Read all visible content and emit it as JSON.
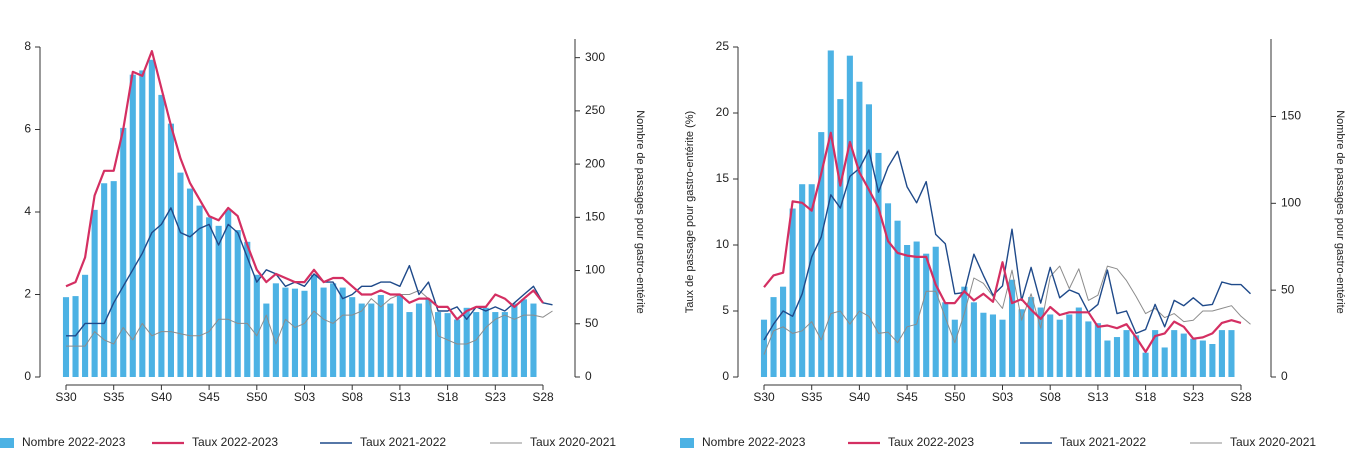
{
  "chart_data": [
    {
      "type": "combo",
      "y_label": null,
      "y2_label": "Nombre de passages pour gastro-entérite",
      "legend": "bottom",
      "grid": false,
      "categories": [
        "S30",
        null,
        null,
        null,
        null,
        "S35",
        null,
        null,
        null,
        null,
        "S40",
        null,
        null,
        null,
        null,
        "S45",
        null,
        null,
        null,
        null,
        "S50",
        null,
        null,
        null,
        null,
        "S03",
        null,
        null,
        null,
        null,
        "S08",
        null,
        null,
        null,
        null,
        "S13",
        null,
        null,
        null,
        null,
        "S18",
        null,
        null,
        null,
        null,
        "S23",
        null,
        null,
        null,
        null,
        "S28",
        null
      ],
      "ylim": [
        0,
        8
      ],
      "yticks": [
        0,
        2,
        4,
        6,
        8
      ],
      "y2lim": [
        0,
        310
      ],
      "y2ticks": [
        0,
        50,
        100,
        150,
        200,
        250,
        300
      ],
      "series": [
        {
          "name": "Nombre 2022-2023",
          "type": "bar",
          "axis": "y2",
          "color": "#4cb2e4",
          "values": [
            75,
            76,
            96,
            157,
            182,
            184,
            234,
            284,
            288,
            298,
            265,
            238,
            192,
            177,
            161,
            150,
            142,
            157,
            138,
            127,
            96,
            69,
            88,
            84,
            83,
            81,
            96,
            84,
            88,
            84,
            75,
            69,
            69,
            77,
            69,
            77,
            61,
            69,
            73,
            61,
            60,
            54,
            65,
            61,
            65,
            61,
            61,
            69,
            73,
            69,
            null,
            null
          ]
        },
        {
          "name": "Taux 2022-2023",
          "type": "line",
          "color": "#d42f62",
          "width": 2.2,
          "values": [
            2.2,
            2.3,
            2.9,
            4.4,
            5.0,
            5.0,
            6.0,
            7.4,
            7.3,
            7.9,
            7.0,
            6.1,
            5.3,
            4.7,
            4.3,
            3.9,
            3.8,
            4.1,
            3.9,
            3.2,
            2.6,
            2.3,
            2.5,
            2.4,
            2.3,
            2.3,
            2.6,
            2.3,
            2.4,
            2.4,
            2.2,
            2.0,
            2.0,
            2.1,
            2.0,
            2.0,
            1.8,
            1.9,
            1.9,
            1.7,
            1.7,
            1.4,
            1.6,
            1.7,
            1.7,
            2.0,
            1.9,
            1.7,
            1.9,
            2.1,
            1.8,
            null
          ]
        },
        {
          "name": "Taux 2021-2022",
          "type": "line",
          "color": "#1f4a8a",
          "width": 1.4,
          "values": [
            1.0,
            1.0,
            1.3,
            1.3,
            1.3,
            1.8,
            2.2,
            2.6,
            3.0,
            3.5,
            3.7,
            4.1,
            3.5,
            3.4,
            3.6,
            3.7,
            3.2,
            3.7,
            3.5,
            2.9,
            2.3,
            2.6,
            2.5,
            2.2,
            2.3,
            2.2,
            2.5,
            2.3,
            2.3,
            1.9,
            2.0,
            2.2,
            2.2,
            2.3,
            2.3,
            2.2,
            2.7,
            2.0,
            2.3,
            1.6,
            1.6,
            1.7,
            1.4,
            1.7,
            1.6,
            1.7,
            1.6,
            1.8,
            2.0,
            2.2,
            1.8,
            1.75
          ]
        },
        {
          "name": "Taux 2020-2021",
          "type": "line",
          "color": "#8c8c8c",
          "width": 1,
          "values": [
            0.75,
            0.75,
            0.75,
            1.1,
            0.9,
            0.8,
            1.2,
            0.9,
            1.3,
            1.0,
            1.1,
            1.1,
            1.05,
            1.0,
            1.0,
            1.1,
            1.4,
            1.4,
            1.3,
            1.3,
            1.0,
            1.5,
            0.8,
            1.4,
            1.2,
            1.3,
            1.6,
            1.4,
            1.3,
            1.5,
            1.5,
            1.6,
            1.9,
            1.7,
            1.9,
            2.0,
            2.0,
            2.1,
            1.9,
            1.0,
            0.9,
            0.8,
            0.8,
            0.9,
            1.2,
            1.4,
            1.5,
            1.4,
            1.5,
            1.5,
            1.45,
            1.6
          ]
        }
      ]
    },
    {
      "type": "combo",
      "y_label": "Taux de passage pour gastro-entérite (%)",
      "y2_label": "Nombre de passages pour gastro-entérite",
      "legend": "bottom",
      "grid": false,
      "categories": [
        "S30",
        null,
        null,
        null,
        null,
        "S35",
        null,
        null,
        null,
        null,
        "S40",
        null,
        null,
        null,
        null,
        "S45",
        null,
        null,
        null,
        null,
        "S50",
        null,
        null,
        null,
        null,
        "S03",
        null,
        null,
        null,
        null,
        "S08",
        null,
        null,
        null,
        null,
        "S13",
        null,
        null,
        null,
        null,
        "S18",
        null,
        null,
        null,
        null,
        "S23",
        null,
        null,
        null,
        null,
        "S28",
        null
      ],
      "ylim": [
        0,
        25
      ],
      "yticks": [
        0,
        5,
        10,
        15,
        20,
        25
      ],
      "y2lim": [
        0,
        190
      ],
      "y2ticks": [
        0,
        50,
        100,
        150
      ],
      "series": [
        {
          "name": "Nombre 2022-2023",
          "type": "bar",
          "axis": "y2",
          "color": "#4cb2e4",
          "values": [
            33,
            46,
            52,
            97,
            111,
            111,
            141,
            188,
            160,
            185,
            170,
            157,
            129,
            100,
            90,
            76,
            78,
            71,
            75,
            43,
            33,
            52,
            43,
            37,
            36,
            33,
            56,
            39,
            46,
            40,
            36,
            33,
            36,
            40,
            32,
            31,
            21,
            23,
            27,
            24,
            14,
            27,
            17,
            27,
            25,
            22,
            21,
            19,
            27,
            27,
            null,
            null
          ]
        },
        {
          "name": "Taux 2022-2023",
          "type": "line",
          "color": "#d42f62",
          "width": 2.2,
          "values": [
            6.8,
            7.7,
            7.9,
            13.3,
            13.2,
            12.6,
            15.4,
            18.5,
            14.5,
            17.8,
            15.5,
            14.2,
            12.8,
            10.3,
            9.4,
            9.2,
            9.1,
            9.1,
            7.0,
            5.6,
            5.6,
            6.5,
            5.8,
            6.3,
            5.7,
            8.7,
            5.6,
            5.9,
            5.1,
            4.4,
            5.3,
            4.7,
            4.9,
            4.9,
            4.9,
            3.8,
            3.9,
            3.7,
            4.0,
            3.0,
            1.9,
            3.1,
            3.3,
            4.2,
            3.8,
            2.9,
            3.0,
            3.3,
            4.1,
            4.3,
            4.1,
            null
          ]
        },
        {
          "name": "Taux 2021-2022",
          "type": "line",
          "color": "#1f4a8a",
          "width": 1.4,
          "values": [
            2.8,
            4.0,
            5.0,
            4.6,
            6.3,
            9.1,
            10.6,
            13.8,
            12.8,
            15.2,
            15.8,
            17.2,
            14.0,
            15.9,
            17.1,
            14.4,
            13.2,
            14.8,
            10.8,
            10.1,
            6.3,
            6.4,
            9.3,
            7.7,
            6.2,
            6.9,
            11.2,
            5.8,
            8.3,
            5.6,
            8.3,
            6.0,
            6.6,
            6.3,
            4.9,
            5.5,
            8.1,
            4.8,
            5.0,
            3.3,
            3.6,
            5.5,
            3.8,
            5.8,
            5.4,
            6.0,
            5.4,
            5.5,
            7.2,
            7.0,
            7.0,
            6.3
          ]
        },
        {
          "name": "Taux 2020-2021",
          "type": "line",
          "color": "#8c8c8c",
          "width": 1,
          "values": [
            1.7,
            3.5,
            3.8,
            3.3,
            3.5,
            4.2,
            2.8,
            4.8,
            5.0,
            4.0,
            5.0,
            4.6,
            3.3,
            3.4,
            2.6,
            3.8,
            4.0,
            6.5,
            6.5,
            4.5,
            2.6,
            4.8,
            7.5,
            7.1,
            6.1,
            5.2,
            8.1,
            4.3,
            6.3,
            3.7,
            7.6,
            8.4,
            6.7,
            8.2,
            5.8,
            6.2,
            8.4,
            8.2,
            7.3,
            6.1,
            4.8,
            5.2,
            4.5,
            4.8,
            4.2,
            4.3,
            5.0,
            5.0,
            5.2,
            5.4,
            4.6,
            4.0
          ]
        }
      ]
    }
  ]
}
